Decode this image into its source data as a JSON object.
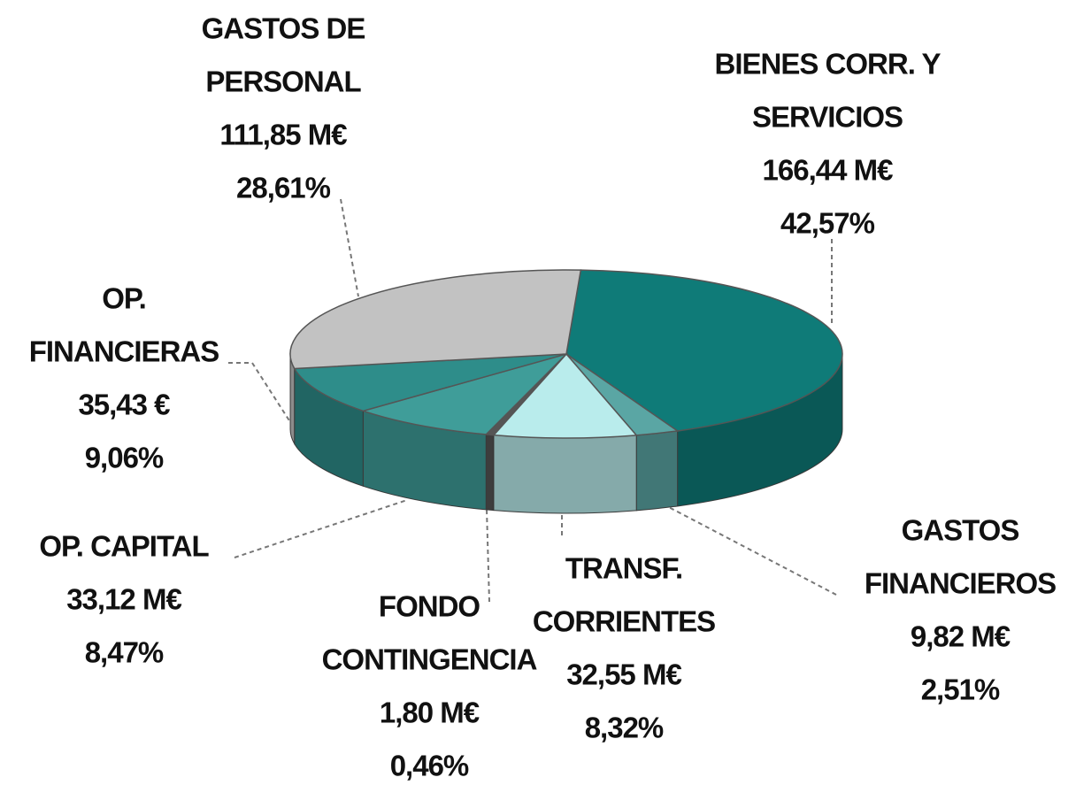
{
  "chart_data": {
    "type": "pie3d",
    "categories": [
      [
        "BIENES CORR. Y",
        "SERVICIOS"
      ],
      [
        "GASTOS",
        "FINANCIEROS"
      ],
      [
        "TRANSF.",
        "CORRIENTES"
      ],
      [
        "FONDO",
        "CONTINGENCIA"
      ],
      [
        "OP. CAPITAL"
      ],
      [
        "OP.",
        "FINANCIERAS"
      ],
      [
        "GASTOS DE",
        "PERSONAL"
      ]
    ],
    "amounts": [
      "166,44 M€",
      "9,82 M€",
      "32,55 M€",
      "1,80 M€",
      "33,12 M€",
      "35,43 €",
      "111,85 M€"
    ],
    "values": [
      42.57,
      2.51,
      8.32,
      0.46,
      8.47,
      9.06,
      28.61
    ],
    "value_labels": [
      "42,57%",
      "2,51%",
      "8,32%",
      "0,46%",
      "8,47%",
      "9,06%",
      "28,61%"
    ],
    "colors": [
      "#0f7b78",
      "#5aa6a4",
      "#b9ecec",
      "#555555",
      "#3f9d99",
      "#2e8d8a",
      "#c2c2c2"
    ]
  }
}
